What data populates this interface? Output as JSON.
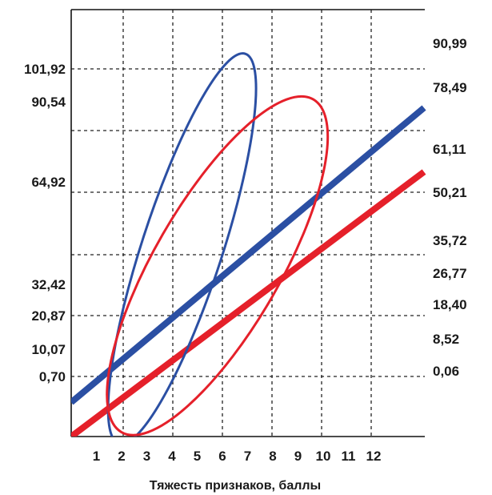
{
  "chart_data": {
    "type": "line",
    "xlabel": "Тяжесть признаков, баллы",
    "x_ticks": [
      "1",
      "2",
      "3",
      "4",
      "5",
      "6",
      "7",
      "8",
      "9",
      "10",
      "11",
      "12"
    ],
    "xlim": [
      0,
      14
    ],
    "left_axis_ticks": [
      "101,92",
      "90,54",
      "64,92",
      "32,42",
      "20,87",
      "10,07",
      "0,70"
    ],
    "right_axis_ticks": [
      "90,99",
      "78,49",
      "61,11",
      "50,21",
      "35,72",
      "26,77",
      "18,40",
      "8,52",
      "0,06"
    ],
    "grid": true,
    "series": [
      {
        "color": "#2b4fa3",
        "kind": "regression-line",
        "x": [
          0,
          14
        ],
        "y_rel": [
          0.08,
          0.77
        ]
      },
      {
        "color": "#e5202a",
        "kind": "regression-line",
        "x": [
          0,
          14
        ],
        "y_rel": [
          0.0,
          0.62
        ]
      },
      {
        "color": "#2b4fa3",
        "kind": "confidence-ellipse",
        "center_x": 4.4,
        "center_y_rel": 0.44,
        "rx": 1.6,
        "ry_rel": 0.48,
        "tilt_deg": 18
      },
      {
        "color": "#e5202a",
        "kind": "confidence-ellipse",
        "center_x": 5.8,
        "center_y_rel": 0.4,
        "rx": 2.5,
        "ry_rel": 0.45,
        "tilt_deg": 30
      }
    ]
  }
}
